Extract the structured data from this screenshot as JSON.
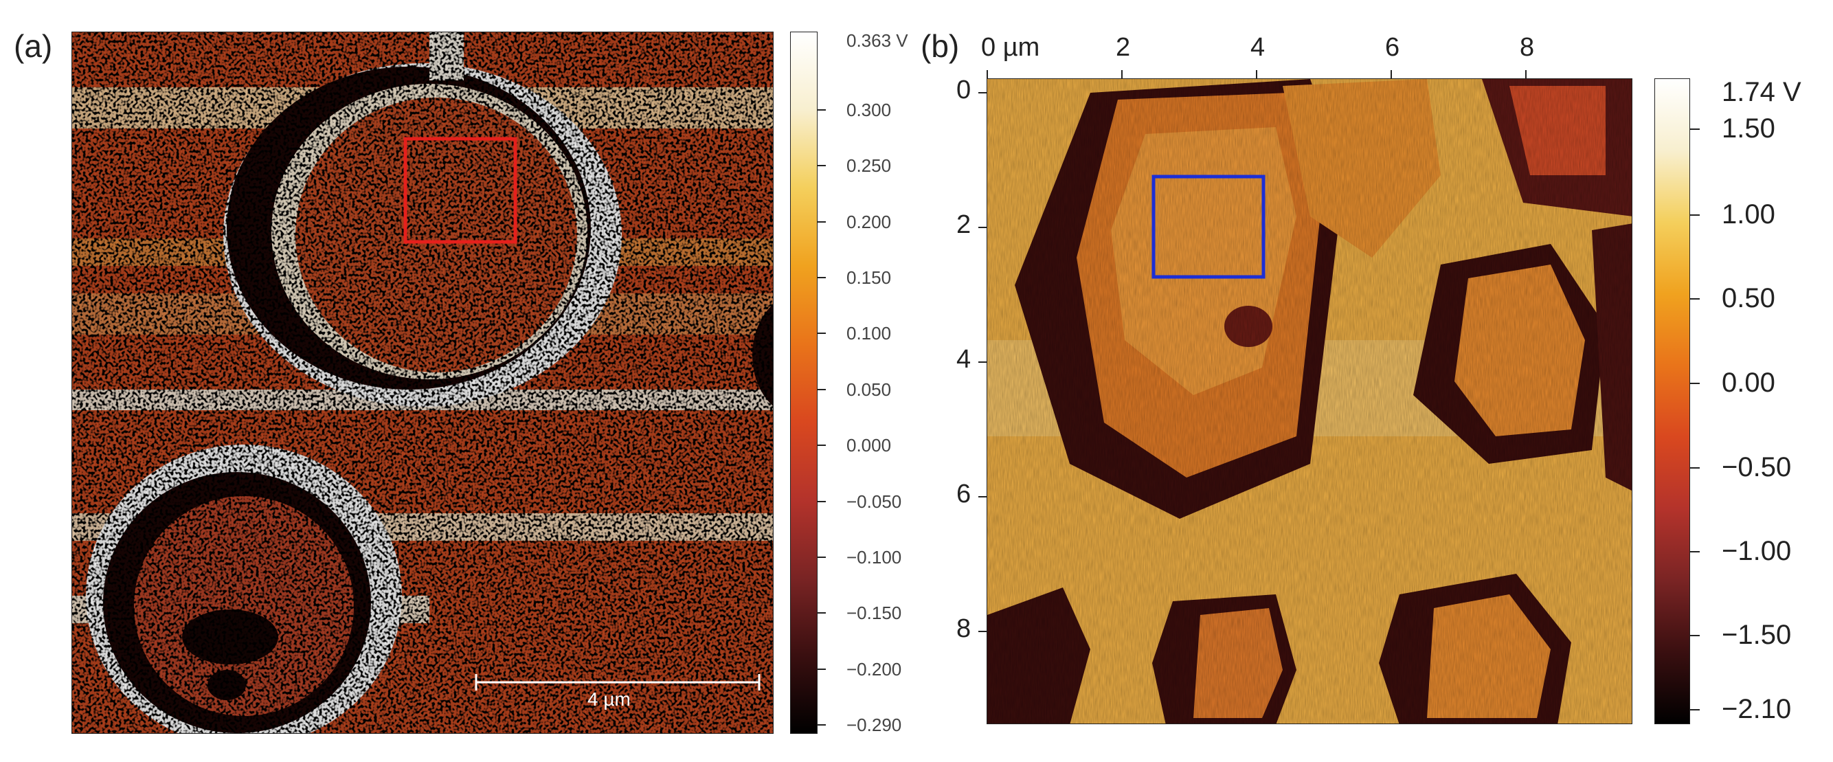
{
  "figure": {
    "panel_a": {
      "label": "(a)",
      "colorbar": {
        "max_label": "0.363 V",
        "ticks": [
          "0.300",
          "0.250",
          "0.200",
          "0.150",
          "0.100",
          "0.050",
          "0.000",
          "−0.050",
          "−0.100",
          "−0.150",
          "−0.200",
          "−0.290"
        ],
        "colors": [
          "#000000",
          "#3a0f10",
          "#7a2424",
          "#b4332b",
          "#d9481f",
          "#e9741a",
          "#f0a21f",
          "#f4cf5c",
          "#f8efcf",
          "#ffffff"
        ]
      },
      "scale_bar": {
        "label": "4 µm",
        "length": 4,
        "unit": "µm"
      },
      "roi": {
        "color": "#e6201c"
      }
    },
    "panel_b": {
      "label": "(b)",
      "x_ticks": [
        "0 µm",
        "2",
        "4",
        "6",
        "8"
      ],
      "y_ticks": [
        "0",
        "2",
        "4",
        "6",
        "8"
      ],
      "colorbar": {
        "max_label": "1.74 V",
        "ticks": [
          "1.50",
          "1.00",
          "0.50",
          "0.00",
          "−0.50",
          "−1.00",
          "−1.50",
          "−2.10"
        ],
        "colors": [
          "#000000",
          "#3a0f10",
          "#7a2424",
          "#b4332b",
          "#d9481f",
          "#e9741a",
          "#f0a21f",
          "#f4cf5c",
          "#f8efcf",
          "#ffffff"
        ]
      },
      "roi": {
        "color": "#1c2fd6"
      }
    }
  }
}
